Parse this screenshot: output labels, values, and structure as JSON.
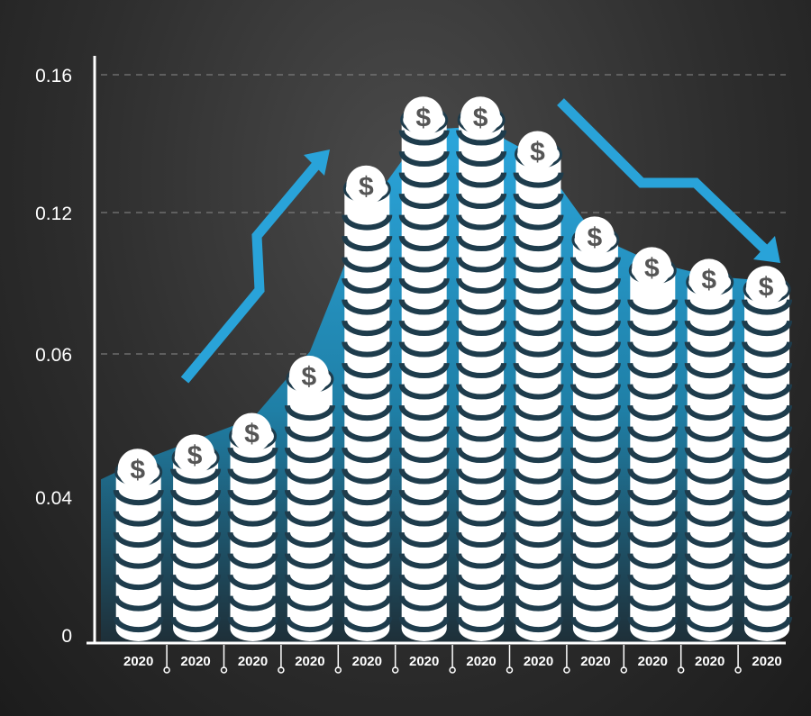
{
  "chart_data": {
    "type": "bar",
    "categories": [
      "2020",
      "2020",
      "2020",
      "2020",
      "2020",
      "2020",
      "2020",
      "2020",
      "2020",
      "2020",
      "2020",
      "2020"
    ],
    "values": [
      0.045,
      0.047,
      0.05,
      0.058,
      0.13,
      0.15,
      0.15,
      0.14,
      0.113,
      0.1,
      0.095,
      0.092
    ],
    "area_values": [
      0.045,
      0.048,
      0.051,
      0.061,
      0.121,
      0.144,
      0.145,
      0.136,
      0.11,
      0.099,
      0.093,
      0.091
    ],
    "y_ticks": [
      {
        "value": 0,
        "label": "0"
      },
      {
        "value": 0.04,
        "label": "0.04"
      },
      {
        "value": 0.06,
        "label": "0.06"
      },
      {
        "value": 0.12,
        "label": "0.12"
      },
      {
        "value": 0.16,
        "label": "0.16"
      }
    ],
    "coin_symbol": "$",
    "grid": true,
    "colors": {
      "accent": "#29a3d9",
      "coin": "#ffffff",
      "coin_symbol": "#555555"
    }
  }
}
